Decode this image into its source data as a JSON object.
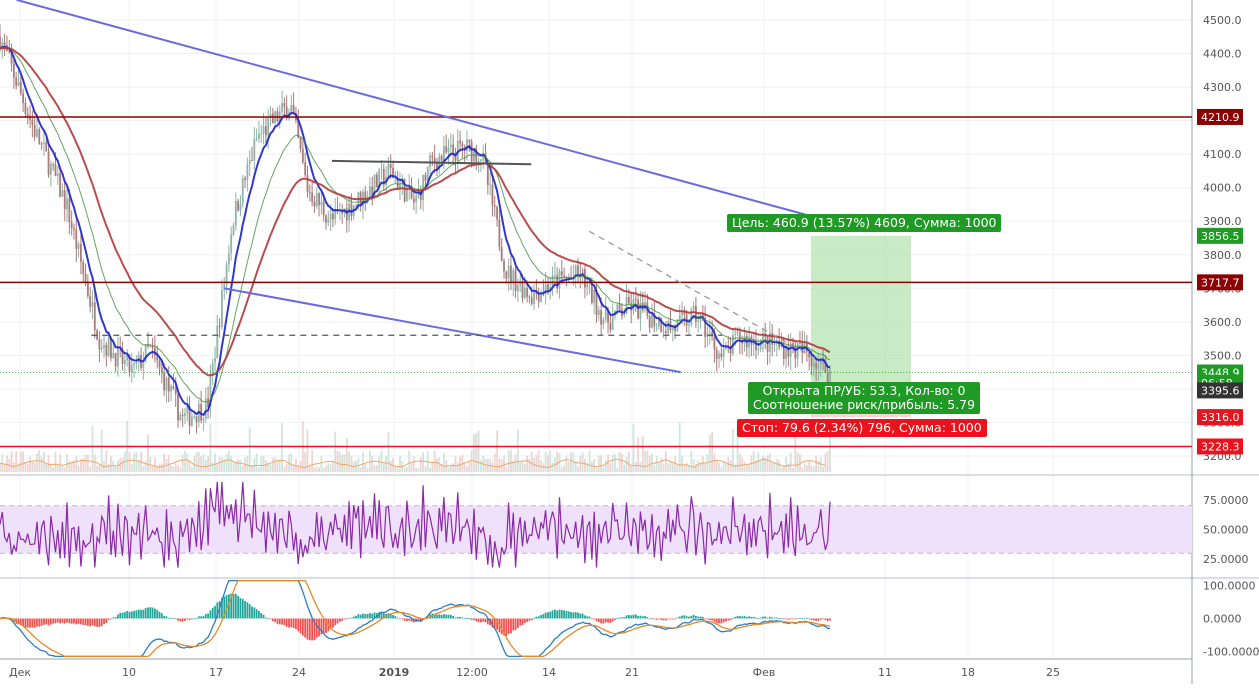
{
  "chart_data": {
    "type": "candlestick",
    "symbol_note": "",
    "x_axis": {
      "tick_labels": [
        "Дек",
        "10",
        "17",
        "24",
        "2019",
        "12:00",
        "14",
        "21",
        "Фев",
        "11",
        "18",
        "25"
      ]
    },
    "price_pane": {
      "ylim": [
        3150,
        4550
      ],
      "ticks": [
        3200,
        3300,
        3400,
        3500,
        3600,
        3700,
        3800,
        3900,
        4000,
        4100,
        4200,
        4300,
        4400,
        4500
      ],
      "tick_labels": [
        "3200.0",
        "3300.0",
        "3400.0",
        "3500.0",
        "3600.0",
        "3700.0",
        "3800.0",
        "3900.0",
        "4000.0",
        "4100.0",
        "4200.0",
        "4300.0",
        "4400.0",
        "4500.0"
      ],
      "close_series_approx": [
        [
          0,
          4450
        ],
        [
          0.04,
          4180
        ],
        [
          0.08,
          3950
        ],
        [
          0.12,
          3550
        ],
        [
          0.16,
          3450
        ],
        [
          0.18,
          3520
        ],
        [
          0.22,
          3310
        ],
        [
          0.25,
          3350
        ],
        [
          0.28,
          3900
        ],
        [
          0.31,
          4150
        ],
        [
          0.35,
          4250
        ],
        [
          0.37,
          4000
        ],
        [
          0.4,
          3900
        ],
        [
          0.43,
          3960
        ],
        [
          0.47,
          4050
        ],
        [
          0.5,
          3950
        ],
        [
          0.52,
          4080
        ],
        [
          0.56,
          4120
        ],
        [
          0.58,
          4100
        ],
        [
          0.61,
          3750
        ],
        [
          0.64,
          3680
        ],
        [
          0.67,
          3720
        ],
        [
          0.7,
          3740
        ],
        [
          0.73,
          3600
        ],
        [
          0.76,
          3650
        ],
        [
          0.78,
          3620
        ],
        [
          0.81,
          3580
        ],
        [
          0.84,
          3620
        ],
        [
          0.87,
          3490
        ],
        [
          0.89,
          3550
        ],
        [
          0.92,
          3540
        ],
        [
          0.95,
          3520
        ],
        [
          0.97,
          3510
        ],
        [
          1.0,
          3448.9
        ]
      ],
      "ema_fast_color": "#1a23c9",
      "ema_mid_color": "#3f8f3a",
      "ema_slow_color": "#b23a3a",
      "candle_up_color": "#8fb4a8",
      "candle_down_color": "#a97a7a",
      "horizontal_levels": [
        {
          "value": 4210.9,
          "color": "#8b0000"
        },
        {
          "value": 3717.7,
          "color": "#8b0000"
        },
        {
          "value": 3228.3,
          "color": "#e8141d"
        }
      ],
      "price_labels": [
        {
          "value": 4210.9,
          "text": "4210.9",
          "color": "#8b0000"
        },
        {
          "value": 3856.5,
          "text": "3856.5",
          "color": "#1f9a24"
        },
        {
          "value": 3717.7,
          "text": "3717.7",
          "color": "#8b0000"
        },
        {
          "value": 3448.9,
          "text": "3448.9",
          "color": "#1f9a24"
        },
        {
          "value": 3418.0,
          "text": "06:58",
          "color": "#1f9a24"
        },
        {
          "value": 3395.6,
          "text": "3395.6",
          "color": "#333333"
        },
        {
          "value": 3316.0,
          "text": "3316.0",
          "color": "#e8141d"
        },
        {
          "value": 3228.3,
          "text": "3228.3",
          "color": "#e8141d"
        }
      ],
      "trendlines": [
        {
          "from": [
            0.02,
            4560
          ],
          "to": [
            0.97,
            3920
          ],
          "color": "#6b6be0"
        },
        {
          "from": [
            0.27,
            3700
          ],
          "to": [
            0.82,
            3450
          ],
          "color": "#6b6be0"
        },
        {
          "from": [
            0.4,
            4080
          ],
          "to": [
            0.64,
            4070
          ],
          "color": "#555555"
        },
        {
          "from": [
            0.11,
            3560
          ],
          "to": [
            0.87,
            3560
          ],
          "color": "#555555",
          "dashed": true
        },
        {
          "from": [
            0.71,
            3870
          ],
          "to": [
            0.99,
            3480
          ],
          "color": "#999999",
          "dashed": true
        }
      ],
      "position": {
        "entry": 3395.6,
        "target": 3856.5,
        "stop": 3316.0
      },
      "annotations": {
        "target_label": "Цель: 460.9 (13.57%) 4609, Сумма: 1000",
        "open_label_line1": "Открыта ПР/УБ: 53.3, Кол-во: 0",
        "open_label_line2": "Соотношение риск/прибыль: 5.79",
        "stop_label": "Стоп: 79.6 (2.34%) 796, Сумма: 1000"
      }
    },
    "rsi_pane": {
      "ylim": [
        10,
        95
      ],
      "ticks": [
        25,
        50,
        75
      ],
      "tick_labels": [
        "25.0000",
        "50.0000",
        "75.0000"
      ],
      "band": [
        30,
        70
      ],
      "line_color": "#8b2aa8",
      "band_color": "#efe0fb"
    },
    "macd_pane": {
      "ylim": [
        -120,
        120
      ],
      "ticks": [
        -100,
        0,
        100
      ],
      "tick_labels": [
        "-100.0000",
        "0.0000",
        "100.0000"
      ],
      "macd_color": "#2e7fbf",
      "signal_color": "#e58a2b",
      "hist_pos_color": "#26a69a",
      "hist_neg_color": "#ef5350"
    }
  }
}
